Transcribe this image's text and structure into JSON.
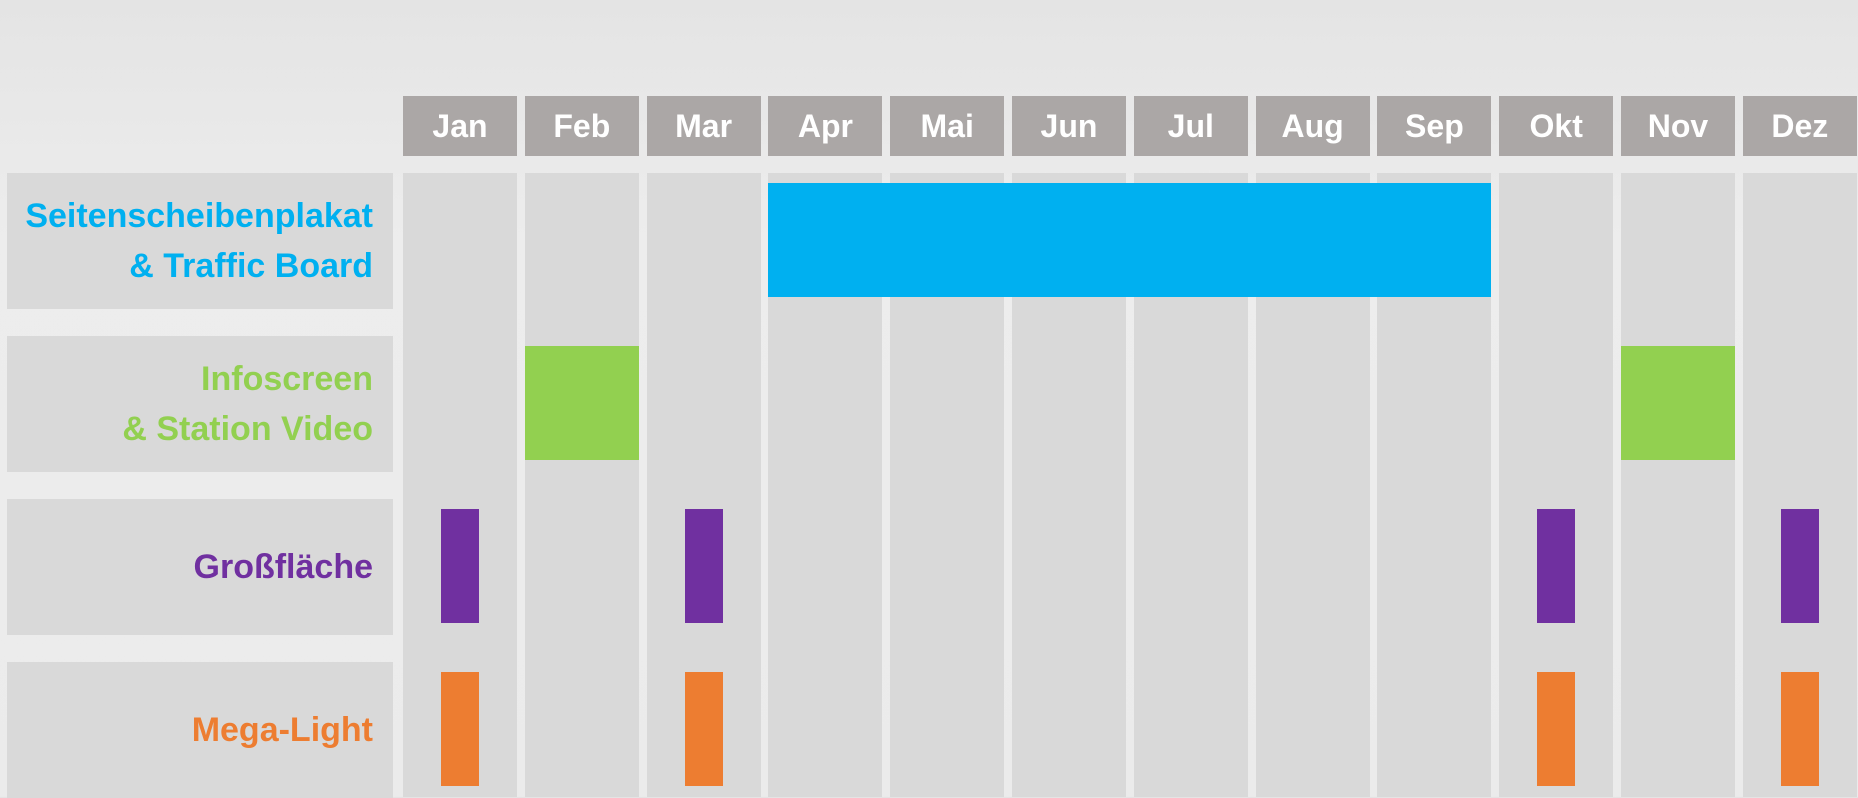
{
  "months": [
    "Jan",
    "Feb",
    "Mar",
    "Apr",
    "Mai",
    "Jun",
    "Jul",
    "Aug",
    "Sep",
    "Okt",
    "Nov",
    "Dez"
  ],
  "rows": [
    {
      "label": [
        "Seitenscheibenplakat",
        "& Traffic Board"
      ],
      "color": "#00b0f0",
      "spans": [
        [
          4,
          9
        ]
      ]
    },
    {
      "label": [
        "Infoscreen",
        "& Station Video"
      ],
      "color": "#92d050",
      "spans": [
        [
          2,
          2
        ],
        [
          11,
          11
        ]
      ]
    },
    {
      "label": [
        "Großfläche"
      ],
      "color": "#7030a0",
      "spans": [
        [
          1,
          1
        ],
        [
          3,
          3
        ],
        [
          10,
          10
        ],
        [
          12,
          12
        ]
      ]
    },
    {
      "label": [
        "Mega-Light"
      ],
      "color": "#ed7d31",
      "spans": [
        [
          1,
          1
        ],
        [
          3,
          3
        ],
        [
          10,
          10
        ],
        [
          12,
          12
        ]
      ]
    }
  ]
}
